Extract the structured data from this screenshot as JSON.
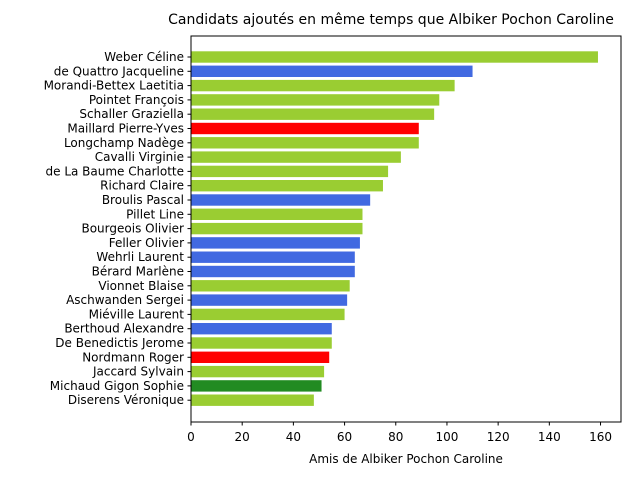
{
  "chart_data": {
    "type": "bar",
    "orientation": "horizontal",
    "title": "Candidats ajoutés en même temps que Albiker Pochon Caroline",
    "xlabel": "Amis de Albiker Pochon Caroline",
    "ylabel": "",
    "xlim": [
      0,
      168
    ],
    "xticks": [
      0,
      20,
      40,
      60,
      80,
      100,
      120,
      140,
      160
    ],
    "grid": false,
    "categories": [
      "Weber Céline",
      "de Quattro Jacqueline",
      "Morandi-Bettex Laetitia",
      "Pointet François",
      "Schaller Graziella",
      "Maillard Pierre-Yves",
      "Longchamp Nadège",
      "Cavalli Virginie",
      "de La Baume Charlotte",
      "Richard Claire",
      "Broulis Pascal",
      "Pillet Line",
      "Bourgeois Olivier",
      "Feller Olivier",
      "Wehrli Laurent",
      "Bérard Marlène",
      "Vionnet Blaise",
      "Aschwanden Sergei",
      "Miéville Laurent",
      "Berthoud Alexandre",
      "De Benedictis Jerome",
      "Nordmann Roger",
      "Jaccard Sylvain",
      "Michaud Gigon Sophie",
      "Diserens Véronique"
    ],
    "values": [
      159,
      110,
      103,
      97,
      95,
      89,
      89,
      82,
      77,
      75,
      70,
      67,
      67,
      66,
      64,
      64,
      62,
      61,
      60,
      55,
      55,
      54,
      52,
      51,
      48
    ],
    "colors": [
      "#9acd32",
      "#4169e1",
      "#9acd32",
      "#9acd32",
      "#9acd32",
      "#ff0000",
      "#9acd32",
      "#9acd32",
      "#9acd32",
      "#9acd32",
      "#4169e1",
      "#9acd32",
      "#9acd32",
      "#4169e1",
      "#4169e1",
      "#4169e1",
      "#9acd32",
      "#4169e1",
      "#9acd32",
      "#4169e1",
      "#9acd32",
      "#ff0000",
      "#9acd32",
      "#228b22",
      "#9acd32"
    ]
  }
}
